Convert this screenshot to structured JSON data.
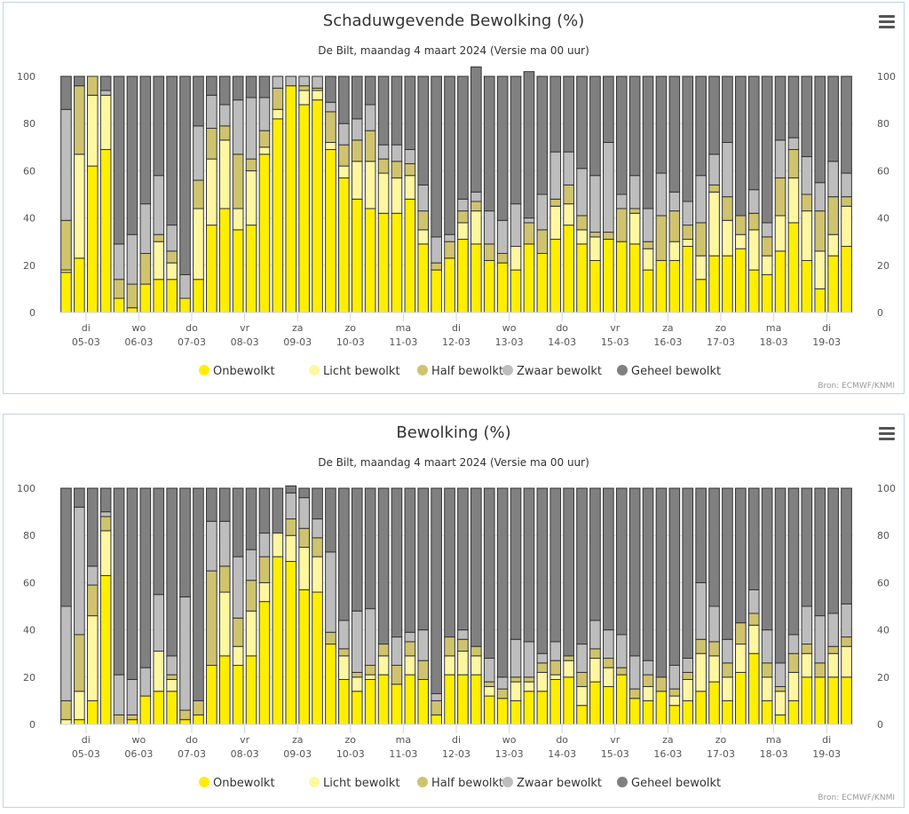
{
  "colors": {
    "Onbewolkt": "#ffee00",
    "Licht bewolkt": "#fff7a0",
    "Half bewolkt": "#cfc36e",
    "Zwaar bewolkt": "#bdbdbd",
    "Geheel bewolkt": "#808080"
  },
  "menu_icon": "hamburger-menu-icon",
  "chart_data": [
    {
      "type": "bar",
      "stacked": true,
      "title": "Schaduwgevende Bewolking (%)",
      "subtitle": "De Bilt, maandag 4 maart 2024 (Versie ma 00 uur)",
      "credits": "Bron: ECMWF/KNMI",
      "ylim": [
        0,
        100
      ],
      "yticks": [
        0,
        20,
        40,
        60,
        80,
        100
      ],
      "legend_position": "bottom-center",
      "day_labels": [
        [
          "di",
          "05-03"
        ],
        [
          "wo",
          "06-03"
        ],
        [
          "do",
          "07-03"
        ],
        [
          "vr",
          "08-03"
        ],
        [
          "za",
          "09-03"
        ],
        [
          "zo",
          "10-03"
        ],
        [
          "ma",
          "11-03"
        ],
        [
          "di",
          "12-03"
        ],
        [
          "wo",
          "13-03"
        ],
        [
          "do",
          "14-03"
        ],
        [
          "vr",
          "15-03"
        ],
        [
          "za",
          "16-03"
        ],
        [
          "zo",
          "17-03"
        ],
        [
          "ma",
          "18-03"
        ],
        [
          "di",
          "19-03"
        ]
      ],
      "series": [
        {
          "name": "Onbewolkt",
          "values": [
            17,
            23,
            62,
            69,
            6,
            2,
            12,
            14,
            14,
            6,
            14,
            37,
            44,
            35,
            37,
            67,
            82,
            96,
            88,
            90,
            69,
            57,
            48,
            44,
            42,
            42,
            48,
            29,
            18,
            23,
            31,
            29,
            22,
            21,
            18,
            29,
            25,
            31,
            37,
            29,
            22,
            31,
            30,
            29,
            18,
            22,
            22,
            28,
            14,
            24,
            24,
            27,
            18,
            16,
            26,
            38,
            22,
            10,
            24,
            28
          ]
        },
        {
          "name": "Licht bewolkt",
          "values": [
            1,
            44,
            30,
            23,
            0,
            0,
            0,
            16,
            7,
            0,
            30,
            28,
            29,
            9,
            23,
            3,
            4,
            0,
            6,
            4,
            3,
            5,
            16,
            20,
            17,
            15,
            10,
            6,
            0,
            0,
            7,
            14,
            0,
            0,
            10,
            0,
            0,
            14,
            9,
            6,
            10,
            0,
            0,
            13,
            9,
            0,
            8,
            3,
            10,
            27,
            15,
            6,
            17,
            8,
            15,
            19,
            21,
            16,
            9,
            17
          ]
        },
        {
          "name": "Half bewolkt",
          "values": [
            21,
            29,
            8,
            0,
            8,
            10,
            13,
            3,
            5,
            0,
            12,
            13,
            6,
            23,
            5,
            7,
            9,
            0,
            2,
            1,
            13,
            9,
            9,
            13,
            6,
            7,
            5,
            8,
            3,
            7,
            5,
            4,
            7,
            4,
            0,
            9,
            10,
            3,
            8,
            6,
            2,
            3,
            14,
            2,
            3,
            19,
            13,
            6,
            14,
            3,
            10,
            8,
            7,
            8,
            16,
            12,
            7,
            17,
            16,
            4
          ]
        },
        {
          "name": "Zwaar bewolkt",
          "values": [
            47,
            0,
            0,
            2,
            15,
            21,
            21,
            25,
            11,
            10,
            23,
            14,
            9,
            23,
            26,
            14,
            5,
            4,
            4,
            5,
            4,
            9,
            9,
            11,
            6,
            7,
            6,
            11,
            11,
            3,
            5,
            4,
            14,
            14,
            18,
            2,
            15,
            20,
            14,
            20,
            24,
            38,
            6,
            14,
            14,
            18,
            8,
            10,
            20,
            13,
            23,
            0,
            10,
            6,
            16,
            5,
            16,
            12,
            15,
            10
          ]
        },
        {
          "name": "Geheel bewolkt",
          "values": [
            14,
            4,
            0,
            6,
            71,
            67,
            54,
            42,
            63,
            84,
            21,
            8,
            12,
            10,
            9,
            9,
            0,
            0,
            0,
            0,
            11,
            20,
            18,
            12,
            29,
            29,
            31,
            46,
            68,
            67,
            52,
            53,
            57,
            61,
            54,
            62,
            50,
            32,
            32,
            39,
            42,
            28,
            50,
            42,
            56,
            41,
            49,
            53,
            42,
            33,
            28,
            59,
            48,
            62,
            27,
            26,
            34,
            45,
            36,
            41
          ]
        }
      ]
    },
    {
      "type": "bar",
      "stacked": true,
      "title": "Bewolking (%)",
      "subtitle": "De Bilt, maandag 4 maart 2024 (Versie ma 00 uur)",
      "credits": "Bron: ECMWF/KNMI",
      "ylim": [
        0,
        100
      ],
      "yticks": [
        0,
        20,
        40,
        60,
        80,
        100
      ],
      "legend_position": "bottom-center",
      "day_labels": [
        [
          "di",
          "05-03"
        ],
        [
          "wo",
          "06-03"
        ],
        [
          "do",
          "07-03"
        ],
        [
          "vr",
          "08-03"
        ],
        [
          "za",
          "09-03"
        ],
        [
          "zo",
          "10-03"
        ],
        [
          "ma",
          "11-03"
        ],
        [
          "di",
          "12-03"
        ],
        [
          "wo",
          "13-03"
        ],
        [
          "do",
          "14-03"
        ],
        [
          "vr",
          "15-03"
        ],
        [
          "za",
          "16-03"
        ],
        [
          "zo",
          "17-03"
        ],
        [
          "ma",
          "18-03"
        ],
        [
          "di",
          "19-03"
        ]
      ],
      "series": [
        {
          "name": "Onbewolkt",
          "values": [
            0,
            2,
            10,
            63,
            0,
            2,
            12,
            14,
            14,
            2,
            4,
            25,
            29,
            25,
            29,
            52,
            71,
            69,
            57,
            56,
            34,
            19,
            14,
            19,
            21,
            17,
            21,
            19,
            4,
            21,
            21,
            21,
            12,
            11,
            10,
            14,
            14,
            19,
            20,
            8,
            18,
            16,
            21,
            11,
            10,
            14,
            8,
            10,
            14,
            18,
            10,
            22,
            30,
            10,
            4,
            10,
            20,
            20,
            20,
            20
          ]
        },
        {
          "name": "Licht bewolkt",
          "values": [
            2,
            12,
            36,
            19,
            0,
            0,
            0,
            17,
            5,
            0,
            0,
            0,
            27,
            8,
            19,
            8,
            10,
            11,
            18,
            15,
            0,
            10,
            6,
            2,
            8,
            0,
            8,
            0,
            0,
            8,
            10,
            8,
            4,
            0,
            8,
            4,
            8,
            2,
            7,
            8,
            10,
            8,
            0,
            0,
            6,
            0,
            4,
            9,
            16,
            11,
            10,
            12,
            12,
            10,
            10,
            12,
            10,
            0,
            10,
            13
          ]
        },
        {
          "name": "Half bewolkt",
          "values": [
            8,
            24,
            13,
            6,
            4,
            2,
            0,
            0,
            2,
            4,
            6,
            40,
            11,
            12,
            13,
            11,
            0,
            7,
            8,
            8,
            5,
            3,
            2,
            4,
            5,
            8,
            6,
            8,
            6,
            8,
            5,
            4,
            2,
            4,
            2,
            2,
            4,
            6,
            2,
            6,
            4,
            4,
            3,
            4,
            5,
            6,
            3,
            3,
            6,
            6,
            6,
            9,
            5,
            6,
            2,
            8,
            4,
            6,
            3,
            4
          ]
        },
        {
          "name": "Zwaar bewolkt",
          "values": [
            40,
            54,
            8,
            2,
            17,
            15,
            12,
            24,
            8,
            48,
            0,
            21,
            19,
            26,
            13,
            10,
            0,
            11,
            13,
            8,
            34,
            12,
            26,
            24,
            0,
            12,
            4,
            13,
            3,
            0,
            4,
            0,
            10,
            5,
            16,
            15,
            4,
            8,
            0,
            12,
            12,
            12,
            14,
            14,
            6,
            0,
            10,
            6,
            24,
            15,
            10,
            0,
            10,
            14,
            10,
            8,
            16,
            20,
            14,
            14
          ]
        },
        {
          "name": "Geheel bewolkt",
          "values": [
            50,
            8,
            33,
            10,
            79,
            81,
            76,
            45,
            71,
            46,
            90,
            14,
            14,
            29,
            26,
            19,
            19,
            3,
            4,
            13,
            27,
            56,
            52,
            51,
            66,
            63,
            61,
            60,
            87,
            63,
            60,
            67,
            72,
            80,
            64,
            65,
            70,
            65,
            71,
            66,
            56,
            60,
            62,
            71,
            73,
            80,
            75,
            72,
            40,
            50,
            64,
            57,
            43,
            60,
            74,
            62,
            50,
            54,
            53,
            49
          ]
        }
      ]
    }
  ]
}
